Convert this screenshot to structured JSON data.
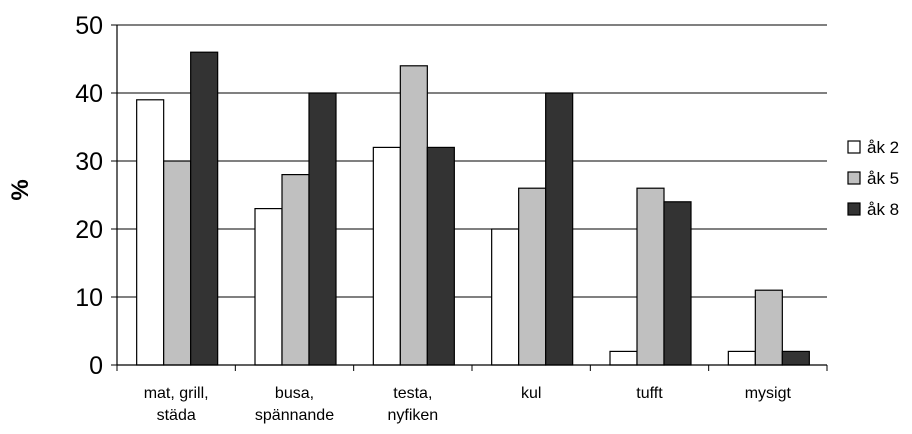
{
  "chart_data": {
    "type": "bar",
    "title": "",
    "xlabel": "",
    "ylabel": "%",
    "ylim": [
      0,
      50
    ],
    "yticks": [
      0,
      10,
      20,
      30,
      40,
      50
    ],
    "grid": true,
    "legend_position": "right",
    "categories": [
      [
        "mat, grill,",
        "städa"
      ],
      [
        "busa,",
        "spännande"
      ],
      [
        "testa,",
        "nyfiken"
      ],
      [
        "kul"
      ],
      [
        "tufft"
      ],
      [
        "mysigt"
      ]
    ],
    "series": [
      {
        "name": "åk 2",
        "color": "#ffffff",
        "values": [
          39,
          23,
          32,
          20,
          2,
          2
        ]
      },
      {
        "name": "åk 5",
        "color": "#c0c0c0",
        "values": [
          30,
          28,
          44,
          26,
          26,
          11
        ]
      },
      {
        "name": "åk 8",
        "color": "#333333",
        "values": [
          46,
          40,
          32,
          40,
          24,
          2
        ]
      }
    ]
  }
}
